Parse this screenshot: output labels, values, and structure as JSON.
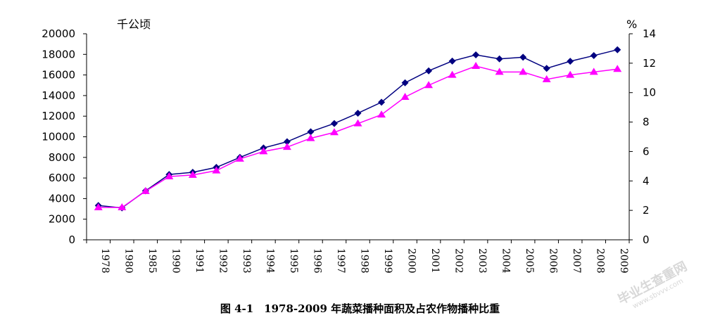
{
  "caption": "图 4-1　1978-2009 年蔬菜播种面积及占农作物播种比重",
  "watermark": {
    "main": "毕业生查重网",
    "sub": "www.sbvvv.com"
  },
  "chart_data": {
    "type": "line",
    "categories": [
      "1978",
      "1980",
      "1985",
      "1990",
      "1991",
      "1992",
      "1993",
      "1994",
      "1995",
      "1996",
      "1997",
      "1998",
      "1999",
      "2000",
      "2001",
      "2002",
      "2003",
      "2004",
      "2005",
      "2006",
      "2007",
      "2008",
      "2009"
    ],
    "y_left": {
      "unit": "千公顷",
      "range": [
        0,
        20000
      ],
      "ticks": [
        "0",
        "2000",
        "4000",
        "6000",
        "8000",
        "10000",
        "12000",
        "14000",
        "16000",
        "18000",
        "20000"
      ]
    },
    "y_right": {
      "unit": "%",
      "range": [
        0,
        14
      ],
      "ticks": [
        "0",
        "2",
        "4",
        "6",
        "8",
        "10",
        "12",
        "14"
      ]
    },
    "series": [
      {
        "axis": "left",
        "marker": "diamond",
        "color": "#000080",
        "values": [
          3330,
          3100,
          4750,
          6340,
          6550,
          7030,
          8000,
          8920,
          9520,
          10490,
          11290,
          12290,
          13350,
          15240,
          16400,
          17350,
          17950,
          17560,
          17720,
          16640,
          17330,
          17880,
          18450
        ]
      },
      {
        "axis": "right",
        "marker": "triangle",
        "color": "#ff00ff",
        "values": [
          2.2,
          2.2,
          3.3,
          4.3,
          4.4,
          4.7,
          5.5,
          6.0,
          6.3,
          6.9,
          7.3,
          7.9,
          8.5,
          9.7,
          10.5,
          11.2,
          11.8,
          11.4,
          11.4,
          10.9,
          11.2,
          11.4,
          11.6
        ]
      }
    ]
  }
}
